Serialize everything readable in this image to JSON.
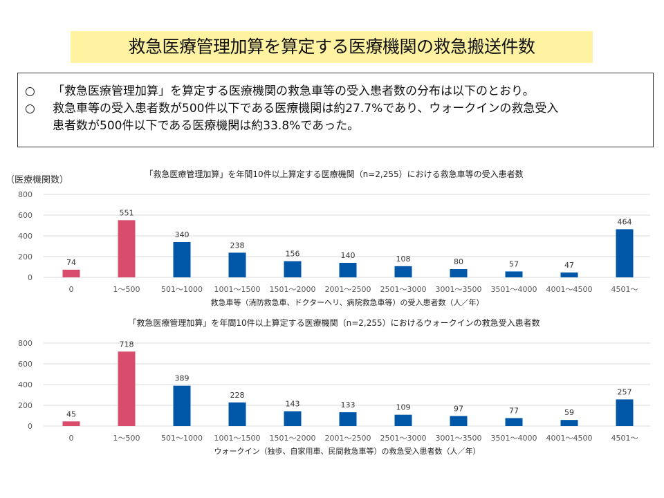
{
  "title": "救急医療管理加算を算定する医療機関の救急搬送件数",
  "summary": {
    "bullet": "○",
    "line1": "「救急医療管理加算」を算定する医療機関の救急車等の受入患者数の分布は以下のとおり。",
    "line2a": "救急車等の受入患者数が500件以下である医療機関は約27.7%であり、ウォークインの救急受入",
    "line2b": "患者数が500件以下である医療機関は約33.8%であった。"
  },
  "colors": {
    "highlight": "#d94c6b",
    "normal": "#0057a8",
    "grid": "#d9d9d9"
  },
  "chart_data": [
    {
      "type": "bar",
      "title": "「救急医療管理加算」を年間10件以上算定する医療機関（n=2,255）における救急車等の受入患者数",
      "ylabel": "（医療機関数）",
      "xlabel": "救急車等（消防救急車、ドクターヘリ、病院救急車等）の受入患者数（人／年）",
      "categories": [
        "0",
        "1～500",
        "501～1000",
        "1001～1500",
        "1501～2000",
        "2001～2500",
        "2501～3000",
        "3001～3500",
        "3501～4000",
        "4001～4500",
        "4501～"
      ],
      "values": [
        74,
        551,
        340,
        238,
        156,
        140,
        108,
        80,
        57,
        47,
        464
      ],
      "highlighted": [
        0,
        1
      ],
      "ylim": [
        0,
        800
      ],
      "yticks": [
        0,
        200,
        400,
        600,
        800
      ],
      "grid": true
    },
    {
      "type": "bar",
      "title": "「救急医療管理加算」を年間10件以上算定する医療機関（n=2,255）におけるウォークインの救急受入患者数",
      "ylabel": "",
      "xlabel": "ウォークイン（独歩、自家用車、民間救急車等）の救急受入患者数（人／年）",
      "categories": [
        "0",
        "1～500",
        "501～1000",
        "1001～1500",
        "1501～2000",
        "2001～2500",
        "2501～3000",
        "3001～3500",
        "3501～4000",
        "4001～4500",
        "4501～"
      ],
      "values": [
        45,
        718,
        389,
        228,
        143,
        133,
        109,
        97,
        77,
        59,
        257
      ],
      "highlighted": [
        0,
        1
      ],
      "ylim": [
        0,
        800
      ],
      "yticks": [
        0,
        200,
        400,
        600,
        800
      ],
      "grid": true
    }
  ]
}
